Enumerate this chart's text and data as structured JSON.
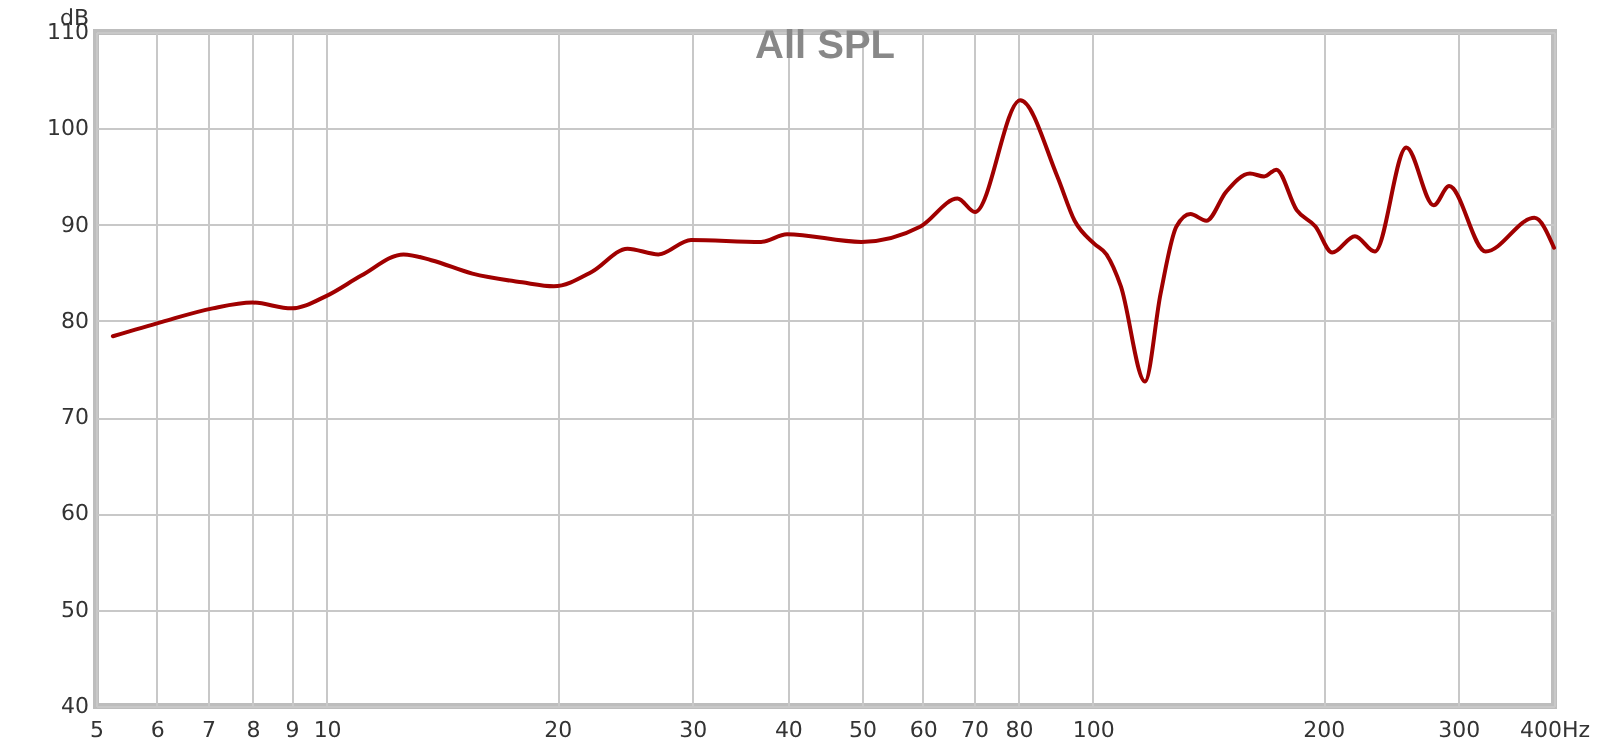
{
  "chart_data": {
    "type": "line",
    "title": "All SPL",
    "ylabel": "dB",
    "log": "x",
    "grid": true,
    "marker": "none",
    "line_style": "solid",
    "xlim": [
      5,
      400
    ],
    "ylim": [
      40,
      110
    ],
    "xticks": [
      5,
      6,
      7,
      8,
      9,
      10,
      20,
      30,
      40,
      50,
      60,
      70,
      80,
      100,
      200,
      300,
      {
        "value": 400,
        "label": "400Hz"
      }
    ],
    "yticks": [
      40,
      50,
      60,
      70,
      80,
      90,
      100,
      110
    ],
    "x": [
      5.26,
      6.1,
      7.1,
      8.0,
      9.0,
      10,
      11.1,
      12.6,
      13.7,
      15.5,
      18,
      19.8,
      22.2,
      24.7,
      27.1,
      29.9,
      36.9,
      39.9,
      49.9,
      59.6,
      66.6,
      70.2,
      80.4,
      89.9,
      94.7,
      100.5,
      104.2,
      108.8,
      117,
      122.6,
      128.6,
      134.1,
      140.7,
      149.3,
      160.4,
      167.4,
      173.6,
      184.6,
      195.3,
      205.4,
      219.9,
      233.5,
      256.6,
      278.6,
      291.9,
      325.7,
      377.1,
      400
    ],
    "series": [
      {
        "color": "#a00000",
        "values": [
          78.4,
          79.9,
          81.3,
          81.9,
          81.3,
          82.6,
          84.7,
          86.9,
          86.3,
          84.9,
          84,
          83.6,
          85.1,
          87.5,
          86.9,
          88.4,
          88.2,
          89,
          88.2,
          89.8,
          92.7,
          91.3,
          102.9,
          95,
          90.4,
          88,
          86.9,
          83.6,
          73.7,
          82.8,
          89.8,
          91.1,
          90.4,
          93.4,
          95.3,
          95,
          95.7,
          91.5,
          89.8,
          87.1,
          88.8,
          87.2,
          98,
          92,
          94,
          87.2,
          90.7,
          87.6
        ]
      }
    ]
  }
}
